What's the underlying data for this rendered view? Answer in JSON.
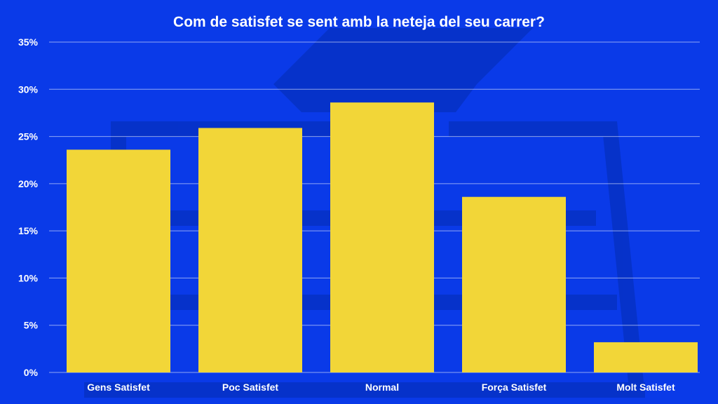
{
  "colors": {
    "background": "#0a3ae8",
    "bar": "#f2d638",
    "text": "#ffffff",
    "gridline": "#ffffff"
  },
  "chart_data": {
    "type": "bar",
    "title": "Com de satisfet se sent amb la neteja del seu carrer?",
    "xlabel": "",
    "ylabel": "",
    "categories": [
      "Gens Satisfet",
      "Poc Satisfet",
      "Normal",
      "Força Satisfet",
      "Molt Satisfet"
    ],
    "values": [
      23.6,
      25.9,
      28.6,
      18.6,
      3.2
    ],
    "ylim": [
      0,
      35
    ],
    "yticks": [
      0,
      5,
      10,
      15,
      20,
      25,
      30,
      35
    ],
    "ytick_labels": [
      "0%",
      "5%",
      "10%",
      "15%",
      "20%",
      "25%",
      "30%",
      "35%"
    ],
    "grid": true,
    "legend": "none"
  }
}
